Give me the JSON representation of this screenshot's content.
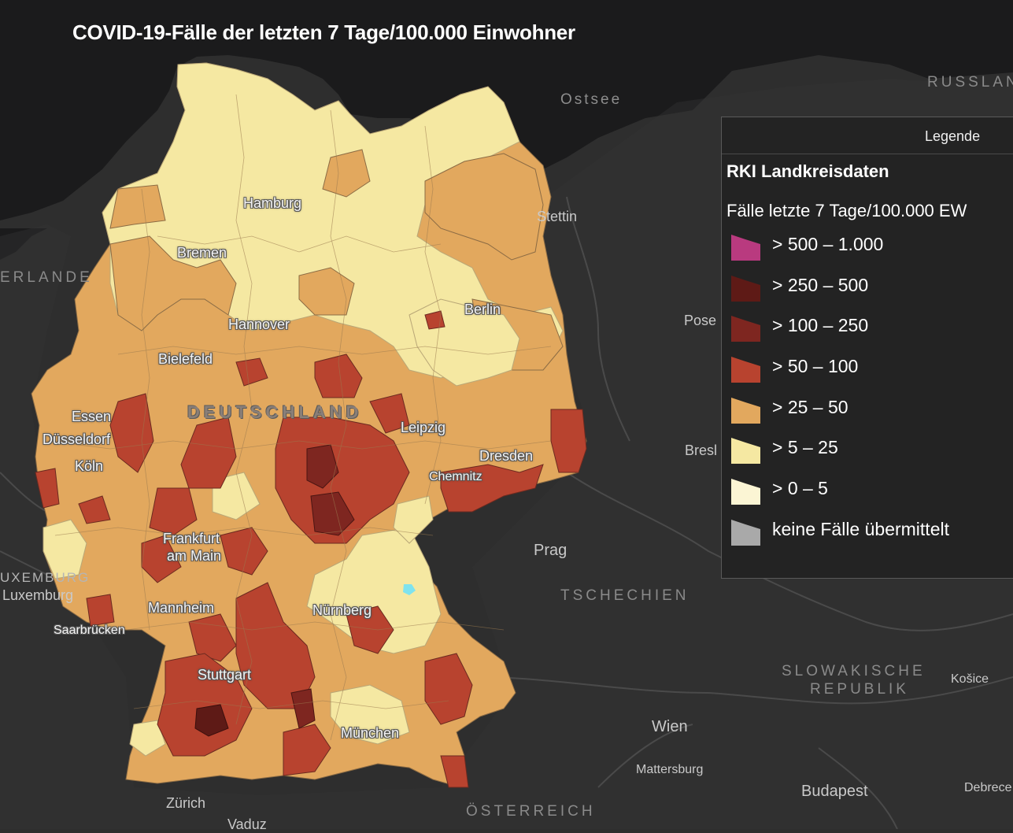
{
  "title": "COVID-19-Fälle der letzten 7 Tage/100.000 Einwohner",
  "colors": {
    "background": "#2e2e2e",
    "water": "#1b1b1c",
    "neighbor_land": "#333333",
    "border": "#4a4a4a"
  },
  "map_labels": {
    "sea": "Ostsee",
    "russland": "RUSSLAN",
    "niederlande": "ERLANDE",
    "deutschland": "DEUTSCHLAND",
    "tschechien": "TSCHECHIEN",
    "slowakei_line1": "SLOWAKISCHE",
    "slowakei_line2": "REPUBLIK",
    "oesterreich": "ÖSTERREICH",
    "luxemburg_country": "UXEMBURG",
    "cities_de": {
      "hamburg": "Hamburg",
      "bremen": "Bremen",
      "hannover": "Hannover",
      "berlin": "Berlin",
      "bielefeld": "Bielefeld",
      "essen": "Essen",
      "duesseldorf": "Düsseldorf",
      "koeln": "Köln",
      "leipzig": "Leipzig",
      "dresden": "Dresden",
      "chemnitz": "Chemnitz",
      "frankfurt_line1": "Frankfurt",
      "frankfurt_line2": "am Main",
      "mannheim": "Mannheim",
      "nuernberg": "Nürnberg",
      "saarbruecken": "Saarbrücken",
      "stuttgart": "Stuttgart",
      "muenchen": "München"
    },
    "cities_ext": {
      "stettin": "Stettin",
      "posen": "Pose",
      "breslau": "Bresl",
      "prag": "Prag",
      "wien": "Wien",
      "mattersburg": "Mattersburg",
      "budapest": "Budapest",
      "kosice": "Košice",
      "debrecen": "Debrece",
      "zuerich": "Zürich",
      "vaduz": "Vaduz",
      "luxemburg_city": "Luxemburg"
    }
  },
  "legend": {
    "tab": "Legende",
    "layer_title": "RKI Landkreisdaten",
    "field_title": "Fälle letzte 7 Tage/100.000 EW",
    "items": [
      {
        "label": "> 500 – 1.000",
        "color": "#b93a7f"
      },
      {
        "label": "> 250 – 500",
        "color": "#5e1a16"
      },
      {
        "label": "> 100 – 250",
        "color": "#7e2620"
      },
      {
        "label": "> 50 – 100",
        "color": "#b8432f"
      },
      {
        "label": "> 25 – 50",
        "color": "#e2a85e"
      },
      {
        "label": "> 5 – 25",
        "color": "#f5e8a2"
      },
      {
        "label": "> 0 – 5",
        "color": "#fbf5d4"
      },
      {
        "label": "keine Fälle übermittelt",
        "color": "#a9a9a9"
      }
    ]
  }
}
